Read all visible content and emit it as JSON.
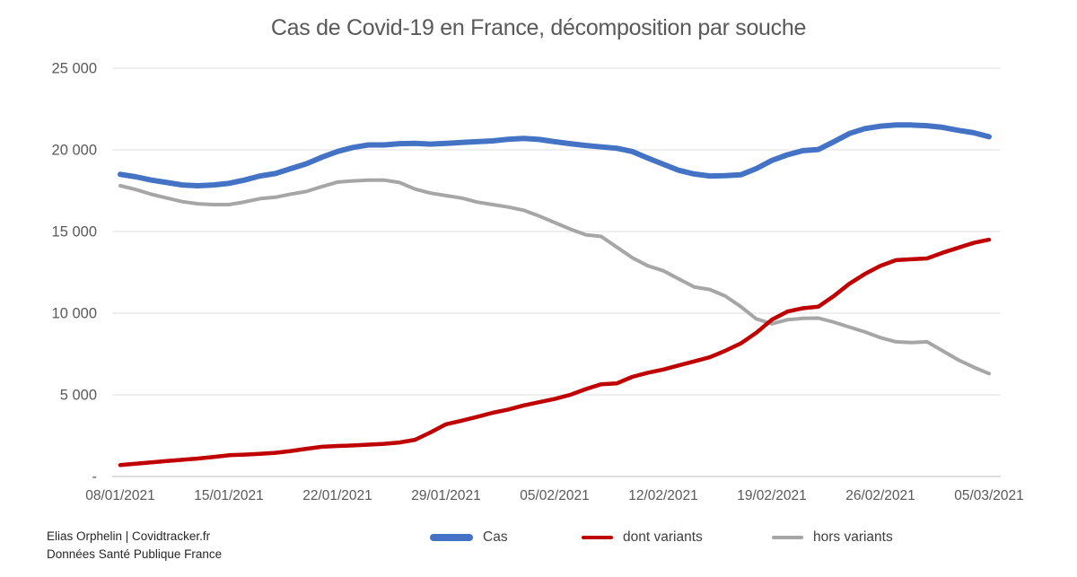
{
  "title": "Cas de Covid-19 en France, décomposition par souche",
  "footer": {
    "line1": "Elias Orphelin | Covidtracker.fr",
    "line2": "Données Santé Publique France"
  },
  "legend": [
    {
      "label": "Cas",
      "color": "#4472C4"
    },
    {
      "label": "dont variants",
      "color": "#C00000"
    },
    {
      "label": "hors variants",
      "color": "#A6A6A6"
    }
  ],
  "colors": {
    "cas": "#4472C4",
    "dont_variants": "#C00000",
    "hors_variants": "#A6A6A6",
    "axis_text": "#595959",
    "gridline": "#E5E5E5",
    "zero_axis": "#C9C9C9"
  },
  "chart_data": {
    "type": "line",
    "title": "Cas de Covid-19 en France, décomposition par souche",
    "x_tick_labels": [
      "08/01/2021",
      "15/01/2021",
      "22/01/2021",
      "29/01/2021",
      "05/02/2021",
      "12/02/2021",
      "19/02/2021",
      "26/02/2021",
      "05/03/2021"
    ],
    "x_tick_day_index": [
      0,
      7,
      14,
      21,
      28,
      35,
      42,
      49,
      56
    ],
    "y_tick_labels": [
      "25 000",
      "20 000",
      "15 000",
      "10 000",
      "5 000",
      "-"
    ],
    "y_tick_values": [
      25000,
      20000,
      15000,
      10000,
      5000,
      0
    ],
    "ylim": [
      0,
      25000
    ],
    "n_points": 57,
    "grid": true,
    "legend_position": "bottom",
    "series": [
      {
        "name": "Cas",
        "color": "#4472C4",
        "width": 6,
        "values": [
          18500,
          18350,
          18150,
          18000,
          17850,
          17800,
          17850,
          17950,
          18150,
          18400,
          18550,
          18850,
          19150,
          19550,
          19900,
          20150,
          20300,
          20300,
          20380,
          20400,
          20350,
          20400,
          20450,
          20500,
          20550,
          20650,
          20700,
          20640,
          20500,
          20380,
          20270,
          20180,
          20100,
          19900,
          19500,
          19120,
          18750,
          18520,
          18400,
          18420,
          18470,
          18850,
          19350,
          19700,
          19950,
          20020,
          20500,
          21000,
          21300,
          21450,
          21520,
          21520,
          21480,
          21380,
          21200,
          21050,
          20800
        ]
      },
      {
        "name": "dont variants",
        "color": "#C00000",
        "width": 4.5,
        "values": [
          700,
          780,
          870,
          950,
          1020,
          1100,
          1200,
          1300,
          1340,
          1390,
          1450,
          1560,
          1700,
          1820,
          1870,
          1900,
          1950,
          2000,
          2080,
          2250,
          2700,
          3200,
          3420,
          3650,
          3900,
          4100,
          4350,
          4550,
          4750,
          5000,
          5350,
          5650,
          5700,
          6100,
          6350,
          6550,
          6800,
          7050,
          7300,
          7700,
          8150,
          8800,
          9600,
          10100,
          10300,
          10400,
          11050,
          11800,
          12400,
          12900,
          13250,
          13300,
          13350,
          13700,
          14000,
          14300,
          14500
        ]
      },
      {
        "name": "hors variants",
        "color": "#A6A6A6",
        "width": 4,
        "values": [
          17800,
          17570,
          17280,
          17050,
          16830,
          16700,
          16650,
          16650,
          16810,
          17010,
          17100,
          17290,
          17450,
          17750,
          18030,
          18100,
          18150,
          18150,
          18000,
          17600,
          17350,
          17200,
          17050,
          16800,
          16650,
          16500,
          16300,
          15950,
          15550,
          15150,
          14800,
          14700,
          14050,
          13400,
          12900,
          12600,
          12100,
          11600,
          11450,
          11050,
          10400,
          9650,
          9350,
          9600,
          9680,
          9700,
          9450,
          9150,
          8850,
          8500,
          8250,
          8200,
          8250,
          7700,
          7150,
          6700,
          6300
        ]
      }
    ]
  }
}
